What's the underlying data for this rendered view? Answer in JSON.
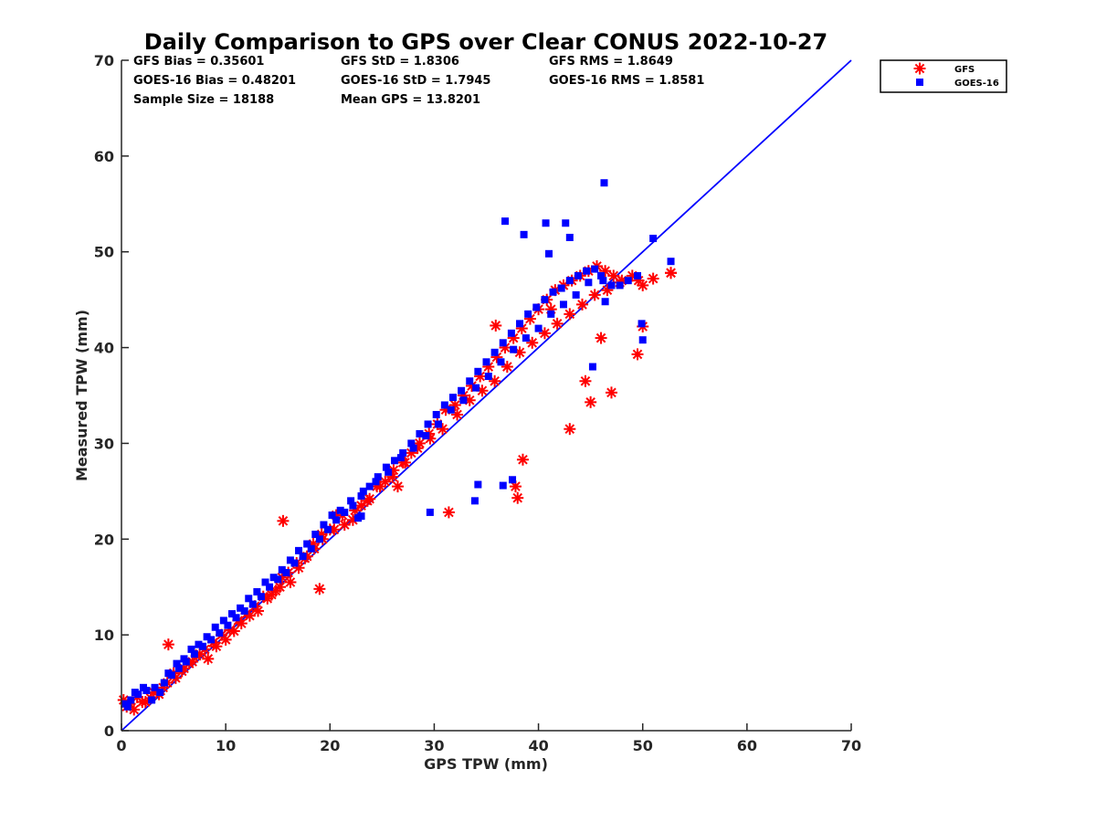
{
  "chart_data": {
    "type": "scatter",
    "title": "Daily Comparison to GPS over Clear CONUS 2022-10-27",
    "xlabel": "GPS TPW (mm)",
    "ylabel": "Measured TPW (mm)",
    "xlim": [
      0,
      70
    ],
    "ylim": [
      0,
      70
    ],
    "xticks": [
      "0",
      "10",
      "20",
      "30",
      "40",
      "50",
      "60",
      "70"
    ],
    "yticks": [
      "0",
      "10",
      "20",
      "30",
      "40",
      "50",
      "60",
      "70"
    ],
    "stats": {
      "gfs_bias": "GFS Bias = 0.35601",
      "gfs_std": "GFS StD = 1.8306",
      "gfs_rms": "GFS RMS = 1.8649",
      "goes_bias": "GOES-16 Bias = 0.48201",
      "goes_std": "GOES-16 StD = 1.7945",
      "goes_rms": "GOES-16 RMS = 1.8581",
      "sample_size": "Sample Size = 18188",
      "mean_gps": "Mean GPS = 13.8201"
    },
    "reference_line": {
      "x": [
        0,
        70
      ],
      "y": [
        0,
        70
      ],
      "color": "#0000ff"
    },
    "series": [
      {
        "name": "GFS",
        "marker": "asterisk",
        "color": "#ff0000",
        "x": [
          0.2,
          0.8,
          1.5,
          2.3,
          3.1,
          4.0,
          4.5,
          5.2,
          6.0,
          6.8,
          7.5,
          8.3,
          9.1,
          10.0,
          10.8,
          11.5,
          12.3,
          13.1,
          14.0,
          14.8,
          15.4,
          16.2,
          17.0,
          17.8,
          18.5,
          19.3,
          20.0,
          20.6,
          21.4,
          22.2,
          23.0,
          23.8,
          24.5,
          25.3,
          26.1,
          27.0,
          27.8,
          28.6,
          29.5,
          30.3,
          31.1,
          32.0,
          32.8,
          33.6,
          34.4,
          35.2,
          36.0,
          36.8,
          37.6,
          38.4,
          39.2,
          40.0,
          40.8,
          41.6,
          42.4,
          43.2,
          44.0,
          44.8,
          45.6,
          46.4,
          47.2,
          48.0,
          49.0,
          50.0,
          51.0,
          52.7,
          0.5,
          1.2,
          2.0,
          2.8,
          3.6,
          4.4,
          5.0,
          5.8,
          6.5,
          7.2,
          8.0,
          8.8,
          9.6,
          10.4,
          11.2,
          12.0,
          12.8,
          13.6,
          14.4,
          15.2,
          16.0,
          16.8,
          17.6,
          18.4,
          19.2,
          20.4,
          21.2,
          22.4,
          23.6,
          24.8,
          26.0,
          27.2,
          28.4,
          29.6,
          30.8,
          32.2,
          33.4,
          34.6,
          35.8,
          37.0,
          38.2,
          39.4,
          40.6,
          41.8,
          43.0,
          44.2,
          45.4,
          46.6,
          47.8,
          49.6,
          50.0,
          38.0,
          47.0,
          45.0,
          43.0,
          49.5,
          52.7,
          41.2,
          35.9,
          37.8,
          38.5,
          26.5,
          31.4,
          15.5,
          19.0,
          44.5,
          46.0
        ],
        "y": [
          3.2,
          2.8,
          3.5,
          3.0,
          4.0,
          4.5,
          9.0,
          5.5,
          6.5,
          7.2,
          8.0,
          7.5,
          8.8,
          9.5,
          10.4,
          11.2,
          12.0,
          12.5,
          13.8,
          14.6,
          16.0,
          15.5,
          17.0,
          18.2,
          19.0,
          20.0,
          21.0,
          22.5,
          21.5,
          22.0,
          23.5,
          24.2,
          25.5,
          26.0,
          27.2,
          28.0,
          29.0,
          30.0,
          31.0,
          32.0,
          33.5,
          34.0,
          35.0,
          36.0,
          37.0,
          38.0,
          39.0,
          40.0,
          41.0,
          42.0,
          43.0,
          44.0,
          45.0,
          46.0,
          46.5,
          47.0,
          47.5,
          48.0,
          48.5,
          48.0,
          47.5,
          47.0,
          47.5,
          46.5,
          47.2,
          47.8,
          2.5,
          2.2,
          3.0,
          3.4,
          3.8,
          5.0,
          6.0,
          6.2,
          7.0,
          7.8,
          8.5,
          9.2,
          10.0,
          10.5,
          11.5,
          12.2,
          13.0,
          14.0,
          14.2,
          15.0,
          16.5,
          17.5,
          18.0,
          19.5,
          20.5,
          21.0,
          22.5,
          23.0,
          24.0,
          25.5,
          26.5,
          28.0,
          29.5,
          30.5,
          31.5,
          33.0,
          34.5,
          35.5,
          36.5,
          38.0,
          39.5,
          40.5,
          41.5,
          42.5,
          43.5,
          44.5,
          45.5,
          46.0,
          46.8,
          47.0,
          42.2,
          24.3,
          35.3,
          34.3,
          31.5,
          39.3,
          47.8,
          44.0,
          42.3,
          25.5,
          28.3,
          25.5,
          22.8,
          21.9,
          14.8,
          36.5,
          41.0
        ]
      },
      {
        "name": "GOES-16",
        "marker": "square",
        "color": "#0000ff",
        "x": [
          0.3,
          0.9,
          1.6,
          2.4,
          3.2,
          4.1,
          4.8,
          5.5,
          6.2,
          7.0,
          7.8,
          8.6,
          9.4,
          10.2,
          11.0,
          11.8,
          12.6,
          13.4,
          14.2,
          15.0,
          15.8,
          16.6,
          17.4,
          18.2,
          19.0,
          19.8,
          20.6,
          21.4,
          22.2,
          23.0,
          23.8,
          24.6,
          25.4,
          26.2,
          27.0,
          27.8,
          28.6,
          29.4,
          30.2,
          31.0,
          31.8,
          32.6,
          33.4,
          34.2,
          35.0,
          35.8,
          36.6,
          37.4,
          38.2,
          39.0,
          39.8,
          40.6,
          41.4,
          42.2,
          43.0,
          43.8,
          44.6,
          45.4,
          46.2,
          47.0,
          47.8,
          48.6,
          49.5,
          50.0,
          51.0,
          52.7,
          0.6,
          1.3,
          2.1,
          2.9,
          3.7,
          4.5,
          5.3,
          6.0,
          6.7,
          7.4,
          8.2,
          9.0,
          9.8,
          10.6,
          11.4,
          12.2,
          13.0,
          13.8,
          14.6,
          15.4,
          16.2,
          17.0,
          17.8,
          18.6,
          19.4,
          20.2,
          21.0,
          22.0,
          23.2,
          24.4,
          25.6,
          26.8,
          28.0,
          29.2,
          30.4,
          31.6,
          32.8,
          34.0,
          35.2,
          36.4,
          37.6,
          38.8,
          40.0,
          41.2,
          42.4,
          43.6,
          44.8,
          46.0,
          46.3,
          40.7,
          38.6,
          36.8,
          42.6,
          43.0,
          41.0,
          33.9,
          36.6,
          37.5,
          34.2,
          29.6,
          23.0,
          22.7,
          49.9,
          46.4,
          45.2
        ],
        "y": [
          2.8,
          3.2,
          3.8,
          4.2,
          4.5,
          5.0,
          5.8,
          6.5,
          7.2,
          8.0,
          8.8,
          9.5,
          10.2,
          11.0,
          11.8,
          12.5,
          13.2,
          14.0,
          15.0,
          15.8,
          16.5,
          17.5,
          18.2,
          19.0,
          20.0,
          21.0,
          22.0,
          22.8,
          23.5,
          24.5,
          25.5,
          26.5,
          27.5,
          28.2,
          29.0,
          30.0,
          31.0,
          32.0,
          33.0,
          34.0,
          34.8,
          35.5,
          36.5,
          37.5,
          38.5,
          39.5,
          40.5,
          41.5,
          42.5,
          43.5,
          44.2,
          45.0,
          45.8,
          46.2,
          47.0,
          47.5,
          48.0,
          48.2,
          47.0,
          46.5,
          46.5,
          47.0,
          47.5,
          40.8,
          51.4,
          49.0,
          2.5,
          4.0,
          4.5,
          3.2,
          4.0,
          6.0,
          7.0,
          7.5,
          8.5,
          9.0,
          9.8,
          10.8,
          11.5,
          12.2,
          12.8,
          13.8,
          14.5,
          15.5,
          16.0,
          16.8,
          17.8,
          18.8,
          19.5,
          20.5,
          21.5,
          22.5,
          23.0,
          24.0,
          25.0,
          26.0,
          27.0,
          28.5,
          29.5,
          30.8,
          32.0,
          33.5,
          34.5,
          35.8,
          37.0,
          38.5,
          39.8,
          41.0,
          42.0,
          43.5,
          44.5,
          45.5,
          46.8,
          47.5,
          57.2,
          53.0,
          51.8,
          53.2,
          53.0,
          51.5,
          49.8,
          24.0,
          25.6,
          26.2,
          25.7,
          22.8,
          22.4,
          22.2,
          42.5,
          44.8,
          38.0
        ]
      }
    ],
    "legend": {
      "entries": [
        "GFS",
        "GOES-16"
      ],
      "placement": "outside-top-right"
    }
  }
}
